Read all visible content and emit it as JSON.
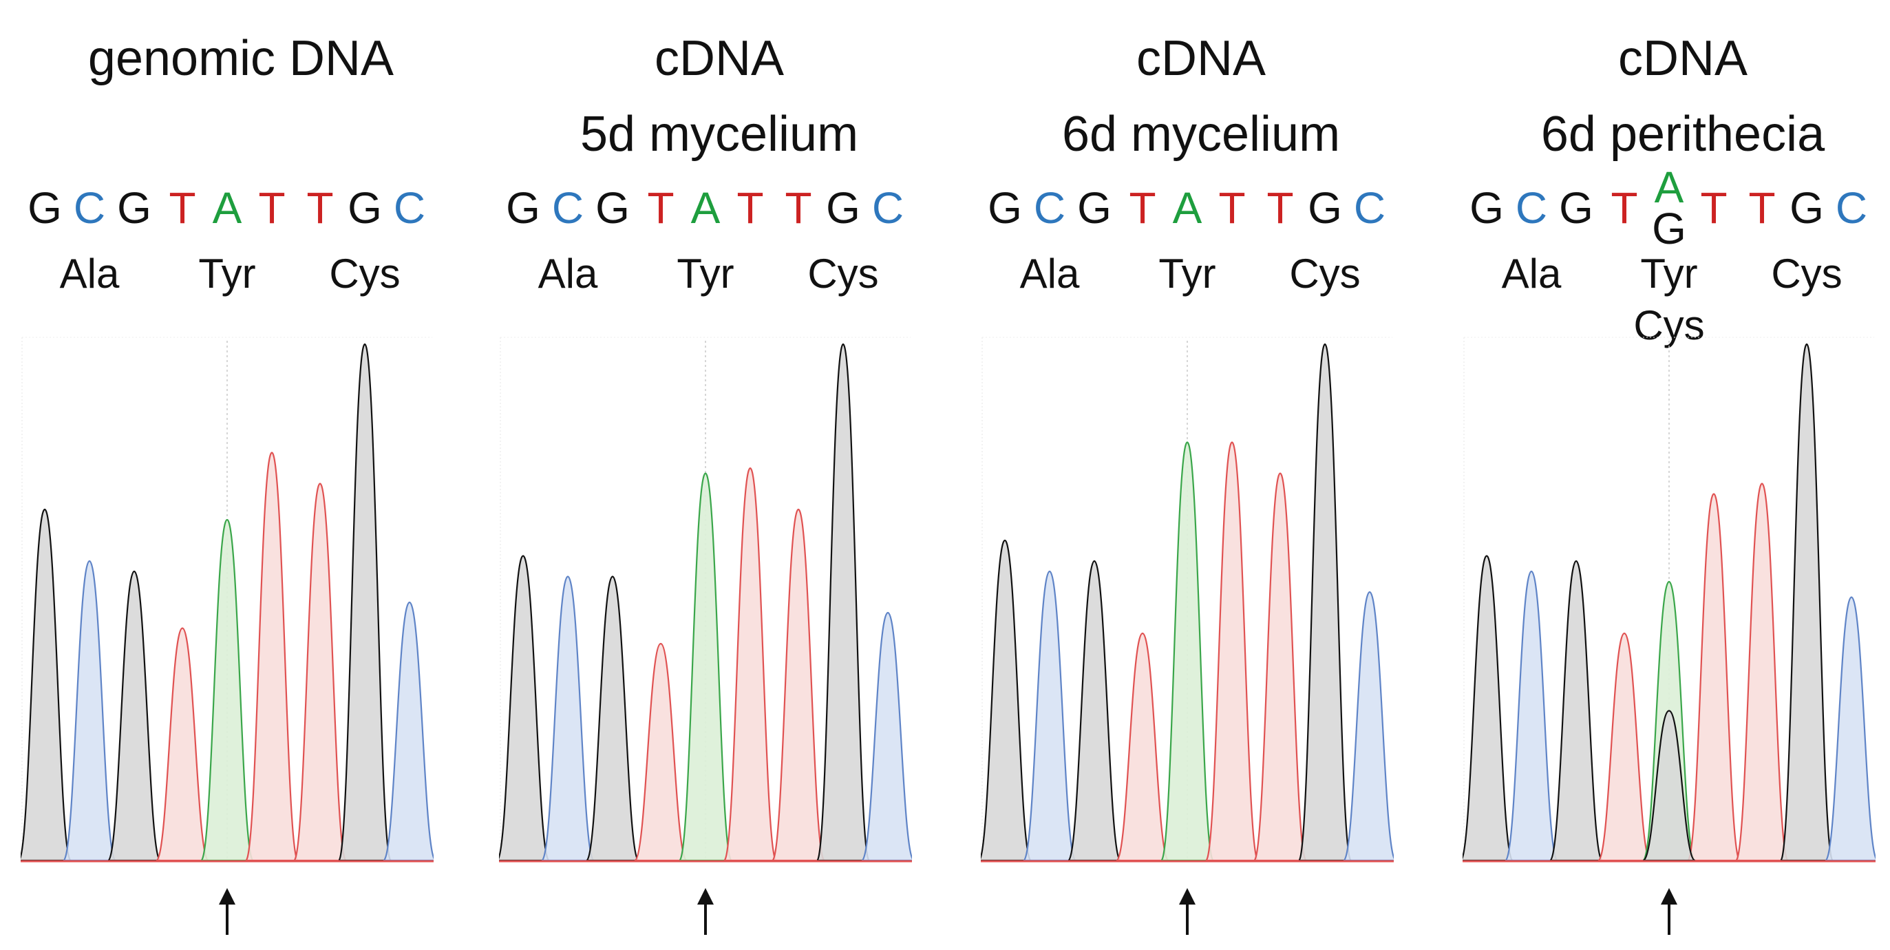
{
  "colors": {
    "G": "#111111",
    "C": "#2e77bd",
    "T": "#cc2222",
    "A": "#1e9e3e",
    "trace_G_fill": "#d8d8d8",
    "trace_C_fill": "#d7e2f4",
    "trace_T_fill": "#f8dedb",
    "trace_A_fill": "#dcefd7",
    "trace_G_line": "#111111",
    "trace_C_line": "#5f84c7",
    "trace_T_line": "#e05252",
    "trace_A_line": "#3aa64a",
    "baseline": "#e05252"
  },
  "panels": [
    {
      "title": [
        "genomic DNA"
      ],
      "bases": [
        [
          "G"
        ],
        [
          "C"
        ],
        [
          "G"
        ],
        [
          "T"
        ],
        [
          "A"
        ],
        [
          "T"
        ],
        [
          "T"
        ],
        [
          "G"
        ],
        [
          "C"
        ]
      ],
      "codons": [
        [
          "Ala"
        ],
        [
          "Tyr"
        ],
        [
          "Cys"
        ]
      ]
    },
    {
      "title": [
        "cDNA",
        "5d mycelium"
      ],
      "bases": [
        [
          "G"
        ],
        [
          "C"
        ],
        [
          "G"
        ],
        [
          "T"
        ],
        [
          "A"
        ],
        [
          "T"
        ],
        [
          "T"
        ],
        [
          "G"
        ],
        [
          "C"
        ]
      ],
      "codons": [
        [
          "Ala"
        ],
        [
          "Tyr"
        ],
        [
          "Cys"
        ]
      ]
    },
    {
      "title": [
        "cDNA",
        "6d mycelium"
      ],
      "bases": [
        [
          "G"
        ],
        [
          "C"
        ],
        [
          "G"
        ],
        [
          "T"
        ],
        [
          "A"
        ],
        [
          "T"
        ],
        [
          "T"
        ],
        [
          "G"
        ],
        [
          "C"
        ]
      ],
      "codons": [
        [
          "Ala"
        ],
        [
          "Tyr"
        ],
        [
          "Cys"
        ]
      ]
    },
    {
      "title": [
        "cDNA",
        "6d perithecia"
      ],
      "bases": [
        [
          "G"
        ],
        [
          "C"
        ],
        [
          "G"
        ],
        [
          "T"
        ],
        [
          "A",
          "G"
        ],
        [
          "T"
        ],
        [
          "T"
        ],
        [
          "G"
        ],
        [
          "C"
        ]
      ],
      "codons": [
        [
          "Ala"
        ],
        [
          "Tyr",
          "Cys"
        ],
        [
          "Cys"
        ]
      ]
    }
  ],
  "chart_data": {
    "type": "line",
    "description_units": "relative peak height (0-1) per base call",
    "series": [
      {
        "panel": 0,
        "peaks": [
          {
            "base": "G",
            "height": 0.68
          },
          {
            "base": "C",
            "height": 0.58
          },
          {
            "base": "G",
            "height": 0.56
          },
          {
            "base": "T",
            "height": 0.45
          },
          {
            "base": "A",
            "height": 0.66
          },
          {
            "base": "T",
            "height": 0.79
          },
          {
            "base": "T",
            "height": 0.73
          },
          {
            "base": "G",
            "height": 1.0
          },
          {
            "base": "C",
            "height": 0.5
          }
        ]
      },
      {
        "panel": 1,
        "peaks": [
          {
            "base": "G",
            "height": 0.59
          },
          {
            "base": "C",
            "height": 0.55
          },
          {
            "base": "G",
            "height": 0.55
          },
          {
            "base": "T",
            "height": 0.42
          },
          {
            "base": "A",
            "height": 0.75
          },
          {
            "base": "T",
            "height": 0.76
          },
          {
            "base": "T",
            "height": 0.68
          },
          {
            "base": "G",
            "height": 1.0
          },
          {
            "base": "C",
            "height": 0.48
          }
        ]
      },
      {
        "panel": 2,
        "peaks": [
          {
            "base": "G",
            "height": 0.62
          },
          {
            "base": "C",
            "height": 0.56
          },
          {
            "base": "G",
            "height": 0.58
          },
          {
            "base": "T",
            "height": 0.44
          },
          {
            "base": "A",
            "height": 0.81
          },
          {
            "base": "T",
            "height": 0.81
          },
          {
            "base": "T",
            "height": 0.75
          },
          {
            "base": "G",
            "height": 1.0
          },
          {
            "base": "C",
            "height": 0.52
          }
        ]
      },
      {
        "panel": 3,
        "peaks": [
          {
            "base": "G",
            "height": 0.59
          },
          {
            "base": "C",
            "height": 0.56
          },
          {
            "base": "G",
            "height": 0.58
          },
          {
            "base": "T",
            "height": 0.44
          },
          {
            "base": "A",
            "height": 0.54
          },
          {
            "base": "G",
            "height": 0.29,
            "secondary": true
          },
          {
            "base": "T",
            "height": 0.71
          },
          {
            "base": "T",
            "height": 0.73
          },
          {
            "base": "G",
            "height": 1.0
          },
          {
            "base": "C",
            "height": 0.51
          }
        ]
      }
    ]
  }
}
